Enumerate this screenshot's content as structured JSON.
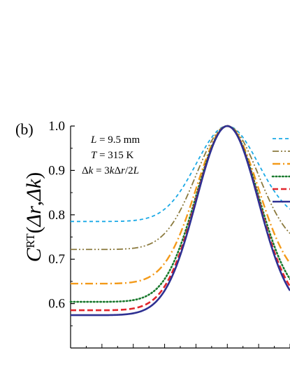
{
  "panel_label": "(b)",
  "annotations": {
    "line1": "L = 9.5 mm",
    "line2": "T = 315 K",
    "line3": "Δk = 3kΔr/2L"
  },
  "chart_data": {
    "type": "line",
    "ylabel": "C^RT(Δr,Δk)",
    "ylim": [
      0.5,
      1.0
    ],
    "yticks": [
      0.6,
      0.7,
      0.8,
      0.9,
      1.0
    ],
    "ytick_labels": [
      "0.6",
      "0.7",
      "0.8",
      "0.9",
      "1.0"
    ],
    "xlim": [
      -1.0,
      0.4
    ],
    "grid": false,
    "legend": "top-right (cut off)",
    "series": [
      {
        "color": "#1aa9e6",
        "style": "dash",
        "plateau": 0.785
      },
      {
        "color": "#8b7a3e",
        "style": "dashdotdot",
        "plateau": 0.722
      },
      {
        "color": "#f39a1a",
        "style": "dashdot",
        "plateau": 0.645
      },
      {
        "color": "#1a7a2e",
        "style": "dot",
        "plateau": 0.604
      },
      {
        "color": "#e1262c",
        "style": "dashbold",
        "plateau": 0.585
      },
      {
        "color": "#2e3092",
        "style": "solid",
        "plateau": 0.574
      }
    ]
  }
}
